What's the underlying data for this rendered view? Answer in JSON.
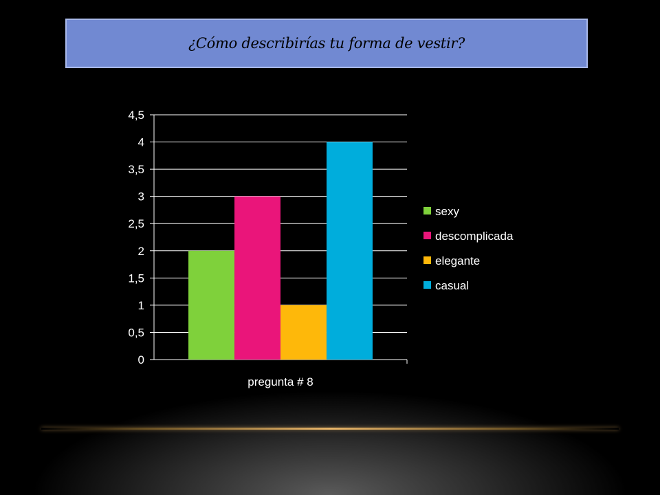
{
  "title": "¿Cómo describirías tu forma de vestir?",
  "colors": {
    "title_bg": "#7189d2",
    "title_border": "#a9b9ea",
    "gridline": "#ffffff",
    "accent_line": "#e9b66a"
  },
  "chart_data": {
    "type": "bar",
    "categories": [
      "pregunta # 8"
    ],
    "series": [
      {
        "name": "sexy",
        "values": [
          2
        ],
        "color": "#7fd13b"
      },
      {
        "name": "descomplicada",
        "values": [
          3
        ],
        "color": "#ea157a"
      },
      {
        "name": "elegante",
        "values": [
          1
        ],
        "color": "#feb80a"
      },
      {
        "name": "casual",
        "values": [
          4
        ],
        "color": "#00addc"
      }
    ],
    "ylim": [
      0,
      4.5
    ],
    "yticks": [
      "0",
      "0,5",
      "1",
      "1,5",
      "2",
      "2,5",
      "3",
      "3,5",
      "4",
      "4,5"
    ],
    "grid": true,
    "legend_position": "right"
  }
}
